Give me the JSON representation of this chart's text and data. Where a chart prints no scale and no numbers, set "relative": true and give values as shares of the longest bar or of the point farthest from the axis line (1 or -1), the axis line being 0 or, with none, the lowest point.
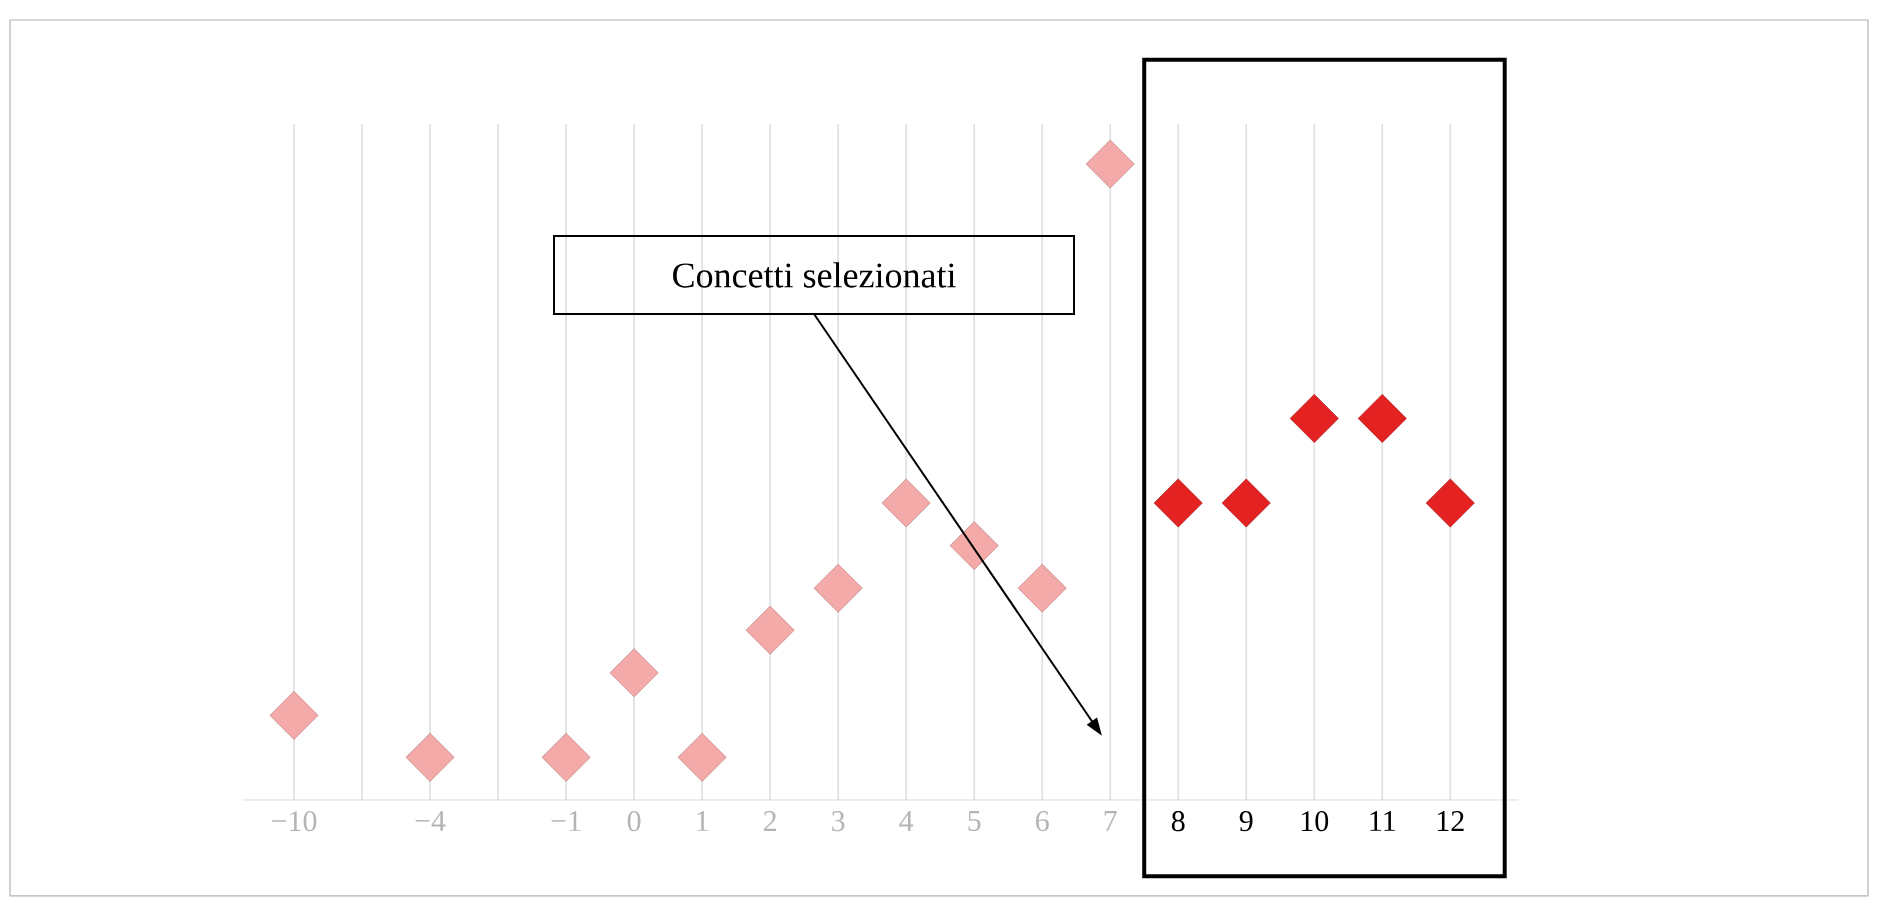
{
  "chart_data": {
    "type": "scatter",
    "relative": true,
    "marker": "diamond",
    "grid": "x",
    "categories": [
      "−10",
      null,
      "−4",
      null,
      "−1",
      "0",
      "1",
      "2",
      "3",
      "4",
      "5",
      "6",
      "7",
      "8",
      "9",
      "10",
      "11",
      "12"
    ],
    "series": [
      {
        "color": "#f5aaaa",
        "values": [
          0.133,
          null,
          0.067,
          null,
          0.067,
          0.2,
          0.067,
          0.267,
          0.333,
          0.467,
          0.4,
          0.333,
          1,
          null,
          null,
          null,
          null,
          null
        ]
      },
      {
        "color": "#e42222",
        "values": [
          null,
          null,
          null,
          null,
          null,
          null,
          null,
          null,
          null,
          null,
          null,
          null,
          null,
          0.467,
          0.467,
          0.6,
          0.6,
          0.467
        ]
      }
    ],
    "annotations": [
      "Concetti selezionati"
    ]
  }
}
